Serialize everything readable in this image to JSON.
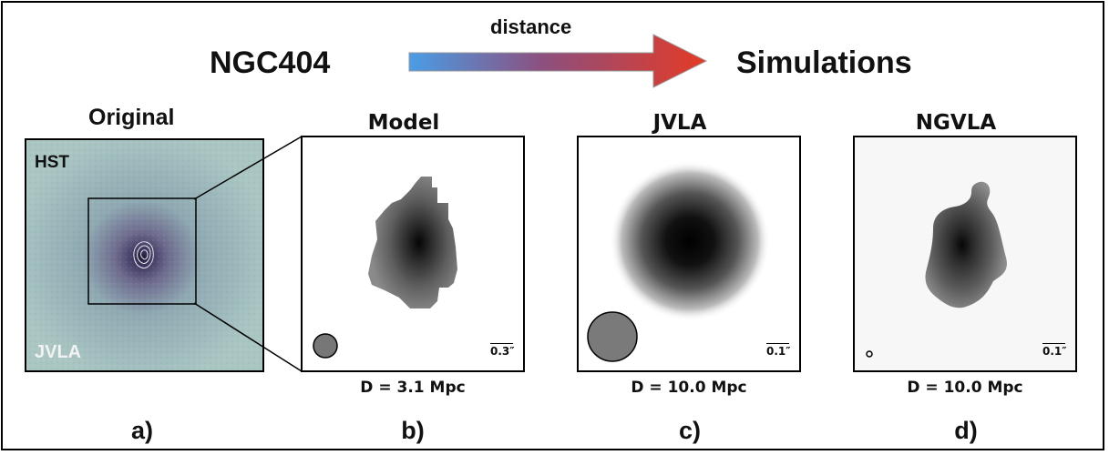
{
  "header": {
    "left_title": "NGC404",
    "arrow_label": "distance",
    "right_title": "Simulations",
    "arrow_colors": {
      "start": "#4a9de6",
      "end": "#e53a26"
    }
  },
  "panels": [
    {
      "id": "a",
      "title": "Original",
      "tags": {
        "top": "HST",
        "bottom": "JVLA"
      },
      "letter": "a)"
    },
    {
      "id": "b",
      "title": "Model",
      "scale": "0.3″",
      "distance": "D = 3.1 Mpc",
      "letter": "b)"
    },
    {
      "id": "c",
      "title": "JVLA",
      "scale": "0.1″",
      "distance": "D = 10.0 Mpc",
      "letter": "c)"
    },
    {
      "id": "d",
      "title": "NGVLA",
      "scale": "0.1″",
      "distance": "D = 10.0 Mpc",
      "letter": "d)"
    }
  ],
  "colors": {
    "hst_background": "#a9c6c3",
    "hst_core": "#3d3560"
  }
}
